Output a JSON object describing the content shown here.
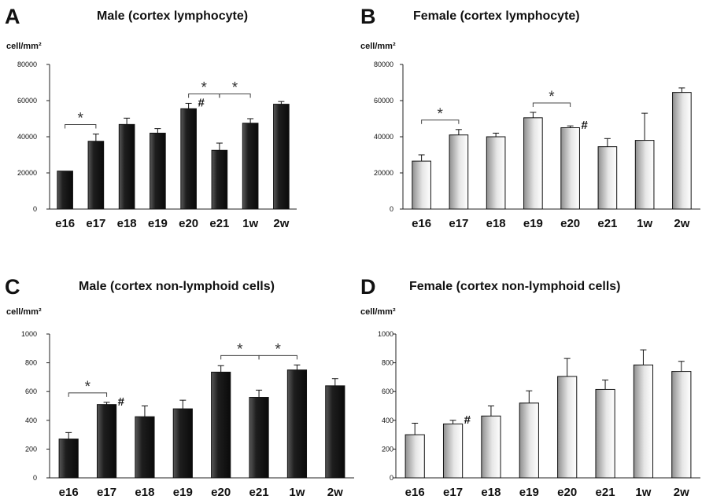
{
  "chart_data": [
    {
      "type": "bar",
      "panel": "A",
      "title": "Male (cortex lymphocyte)",
      "ylabel": "cell/mm²",
      "style": "dark",
      "categories": [
        "e16",
        "e17",
        "e18",
        "e19",
        "e20",
        "e21",
        "1w",
        "2w"
      ],
      "values": [
        21000,
        37500,
        46800,
        42000,
        55500,
        32500,
        47500,
        58000
      ],
      "errors": [
        0,
        4000,
        3500,
        2500,
        3000,
        4000,
        2500,
        1500
      ],
      "ylim": [
        0,
        80000
      ],
      "yticks": [
        "0",
        "20000",
        "40000",
        "60000",
        "80000"
      ],
      "significance": [
        {
          "from": "e16",
          "to": "e17",
          "label": "*"
        },
        {
          "from": "e20",
          "to": "e21",
          "label": "*"
        },
        {
          "from": "e21",
          "to": "1w",
          "label": "*"
        }
      ],
      "markers": [
        {
          "at": "e20",
          "label": "#"
        }
      ]
    },
    {
      "type": "bar",
      "panel": "B",
      "title": "Female (cortex lymphocyte)",
      "ylabel": "cell/mm²",
      "style": "light",
      "categories": [
        "e16",
        "e17",
        "e18",
        "e19",
        "e20",
        "e21",
        "1w",
        "2w"
      ],
      "values": [
        26500,
        41000,
        40000,
        50500,
        45000,
        34500,
        38000,
        64500
      ],
      "errors": [
        3500,
        3000,
        2000,
        3000,
        1000,
        4500,
        15000,
        2500
      ],
      "ylim": [
        0,
        80000
      ],
      "yticks": [
        "0",
        "20000",
        "40000",
        "60000",
        "80000"
      ],
      "significance": [
        {
          "from": "e16",
          "to": "e17",
          "label": "*"
        },
        {
          "from": "e19",
          "to": "e20",
          "label": "*"
        }
      ],
      "markers": [
        {
          "at": "e20",
          "label": "#"
        }
      ]
    },
    {
      "type": "bar",
      "panel": "C",
      "title": "Male (cortex non-lymphoid cells)",
      "ylabel": "cell/mm²",
      "style": "dark",
      "categories": [
        "e16",
        "e17",
        "e18",
        "e19",
        "e20",
        "e21",
        "1w",
        "2w"
      ],
      "values": [
        270,
        510,
        425,
        480,
        735,
        560,
        750,
        640
      ],
      "errors": [
        45,
        15,
        75,
        60,
        45,
        50,
        35,
        50
      ],
      "ylim": [
        0,
        1000
      ],
      "yticks": [
        "0",
        "200",
        "400",
        "600",
        "800",
        "1000"
      ],
      "significance": [
        {
          "from": "e16",
          "to": "e17",
          "label": "*"
        },
        {
          "from": "e20",
          "to": "e21",
          "label": "*"
        },
        {
          "from": "e21",
          "to": "1w",
          "label": "*"
        }
      ],
      "markers": [
        {
          "at": "e17",
          "label": "#"
        }
      ]
    },
    {
      "type": "bar",
      "panel": "D",
      "title": "Female (cortex non-lymphoid cells)",
      "ylabel": "cell/mm²",
      "style": "light",
      "categories": [
        "e16",
        "e17",
        "e18",
        "e19",
        "e20",
        "e21",
        "1w",
        "2w"
      ],
      "values": [
        300,
        375,
        430,
        520,
        705,
        615,
        785,
        740
      ],
      "errors": [
        80,
        25,
        70,
        85,
        125,
        65,
        105,
        70
      ],
      "ylim": [
        0,
        1000
      ],
      "yticks": [
        "0",
        "200",
        "400",
        "600",
        "800",
        "1000"
      ],
      "significance": [],
      "markers": [
        {
          "at": "e17",
          "label": "#"
        }
      ]
    }
  ]
}
